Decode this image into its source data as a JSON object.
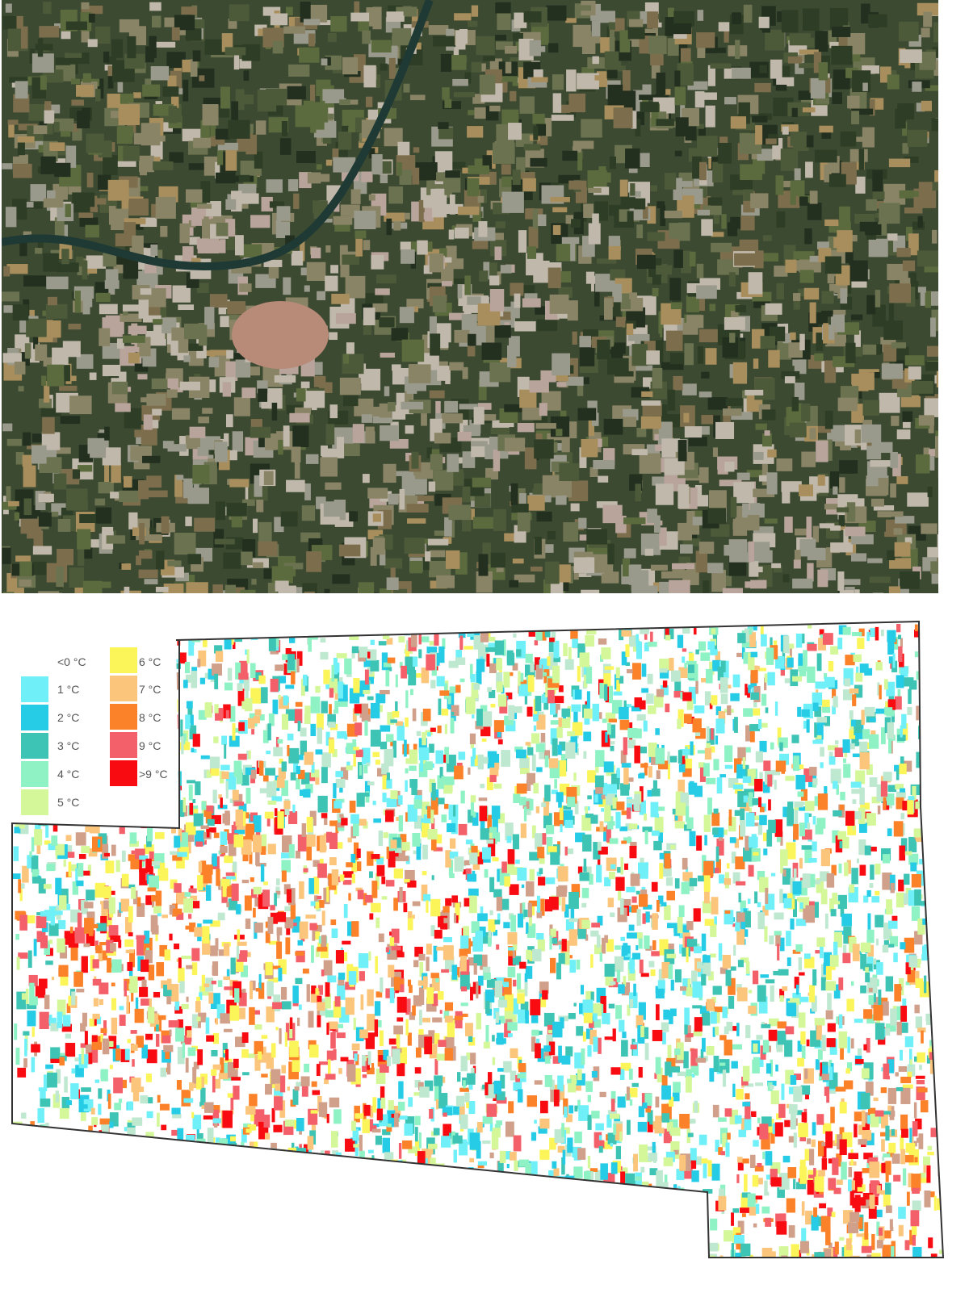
{
  "satellite_image": {
    "description_icon": "satellite-image"
  },
  "legend": {
    "items": [
      {
        "label": "<0 °C",
        "color": "#ffffff"
      },
      {
        "label": "1 °C",
        "color": "#6ff0f8"
      },
      {
        "label": "2 °C",
        "color": "#26cbe6"
      },
      {
        "label": "3 °C",
        "color": "#3ec4b4"
      },
      {
        "label": "4 °C",
        "color": "#8ef2c4"
      },
      {
        "label": "5 °C",
        "color": "#d4f79a"
      },
      {
        "label": "6 °C",
        "color": "#fbf55a"
      },
      {
        "label": "7 °C",
        "color": "#fbc67c"
      },
      {
        "label": "8 °C",
        "color": "#fb8228"
      },
      {
        "label": "9 °C",
        "color": "#f4606a"
      },
      {
        "label": ">9 °C",
        "color": "#f80c12"
      }
    ]
  }
}
